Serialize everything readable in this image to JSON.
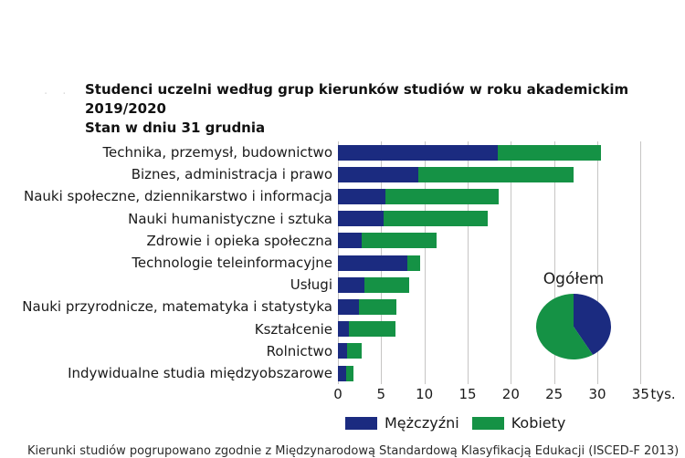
{
  "title": {
    "prefix_faint": ". .",
    "line1": "Studenci  uczelni według grup kierunków studiów  w roku akademickim 2019/2020",
    "line2": "Stan w dniu 31 grudnia"
  },
  "colors": {
    "men": "#1b2b80",
    "women": "#159245",
    "grid": "#c6c5c4",
    "text": "#1a1a1a"
  },
  "chart_data": {
    "type": "bar",
    "orientation": "horizontal",
    "stacked": true,
    "unit": "tys.",
    "categories": [
      "Technika, przemysł, budownictwo",
      "Biznes, administracja i prawo",
      "Nauki społeczne, dziennikarstwo i informacja",
      "Nauki humanistyczne i sztuka",
      "Zdrowie i opieka społeczna",
      "Technologie teleinformacyjne",
      "Usługi",
      "Nauki przyrodnicze, matematyka i statystyka",
      "Kształcenie",
      "Rolnictwo",
      "Indywidualne studia międzyobszarowe"
    ],
    "series": [
      {
        "name": "Mężczyźni",
        "color_key": "men",
        "values": [
          18.5,
          9.3,
          5.5,
          5.3,
          2.7,
          8.0,
          3.1,
          2.4,
          1.3,
          1.1,
          1.0
        ]
      },
      {
        "name": "Kobiety",
        "color_key": "women",
        "values": [
          11.9,
          18.0,
          13.1,
          12.0,
          8.7,
          1.5,
          5.1,
          4.4,
          5.4,
          1.6,
          0.8
        ]
      }
    ],
    "xticks": [
      0,
      5,
      10,
      15,
      20,
      25,
      30,
      35
    ],
    "xlim": [
      0,
      39
    ],
    "grid": true,
    "legend_position": "bottom",
    "pie": {
      "title": "Ogółem",
      "slices": [
        {
          "name": "Mężczyźni",
          "percent": 41.4,
          "color_key": "men"
        },
        {
          "name": "Kobiety",
          "percent": 58.6,
          "color_key": "women"
        }
      ]
    }
  },
  "axis": {
    "tick_labels": [
      "0",
      "5",
      "10",
      "15",
      "20",
      "25",
      "30",
      "35"
    ],
    "unit_label": "tys."
  },
  "legend": {
    "items": [
      {
        "label": "Mężczyźni",
        "color_key": "men"
      },
      {
        "label": "Kobiety",
        "color_key": "women"
      }
    ]
  },
  "pie_label": "Ogółem",
  "footnote": {
    "clipped_text": "Kierunki studiów pogrupowano zgodnie z Międzynarodową Standardową Klasyfikacją Edukacji (ISCED-F 2013)"
  }
}
